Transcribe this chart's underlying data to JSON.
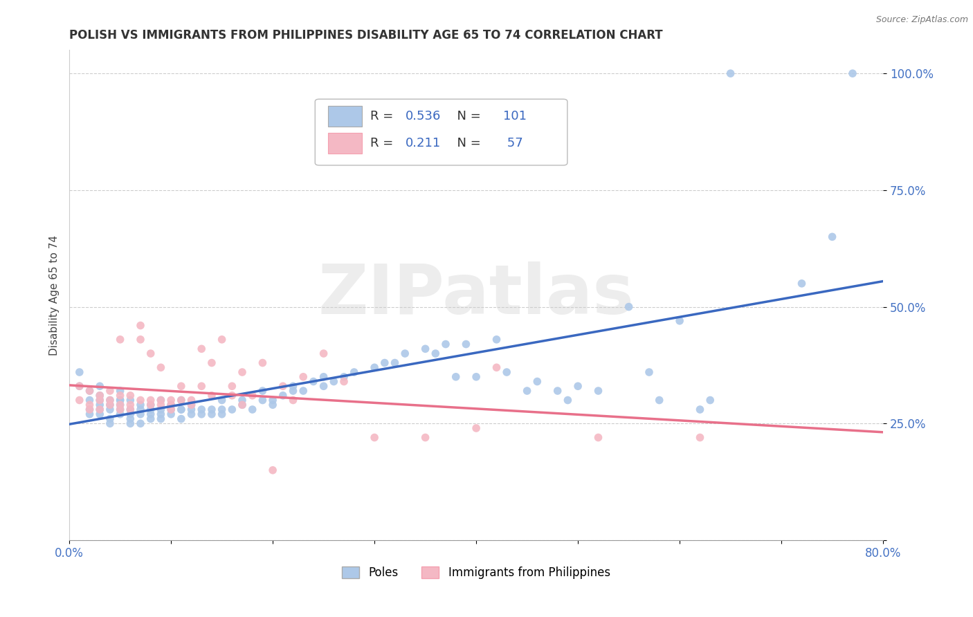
{
  "title": "POLISH VS IMMIGRANTS FROM PHILIPPINES DISABILITY AGE 65 TO 74 CORRELATION CHART",
  "source": "Source: ZipAtlas.com",
  "ylabel": "Disability Age 65 to 74",
  "xmin": 0.0,
  "xmax": 0.8,
  "ymin": 0.0,
  "ymax": 1.05,
  "xtick_positions": [
    0.0,
    0.1,
    0.2,
    0.3,
    0.4,
    0.5,
    0.6,
    0.7,
    0.8
  ],
  "xtick_labels": [
    "0.0%",
    "",
    "",
    "",
    "",
    "",
    "",
    "",
    "80.0%"
  ],
  "ytick_positions": [
    0.0,
    0.25,
    0.5,
    0.75,
    1.0
  ],
  "ytick_labels": [
    "",
    "25.0%",
    "50.0%",
    "75.0%",
    "100.0%"
  ],
  "blue_color": "#adc8e8",
  "pink_color": "#f4b8c4",
  "blue_line_color": "#3a68c0",
  "pink_line_color": "#e8708a",
  "legend_r_color": "#3a68c0",
  "legend_label_blue": "Poles",
  "legend_label_pink": "Immigrants from Philippines",
  "watermark": "ZIPatlas",
  "blue_scatter": [
    [
      0.01,
      0.33
    ],
    [
      0.01,
      0.36
    ],
    [
      0.02,
      0.3
    ],
    [
      0.02,
      0.28
    ],
    [
      0.02,
      0.27
    ],
    [
      0.02,
      0.32
    ],
    [
      0.03,
      0.29
    ],
    [
      0.03,
      0.3
    ],
    [
      0.03,
      0.28
    ],
    [
      0.03,
      0.31
    ],
    [
      0.03,
      0.33
    ],
    [
      0.03,
      0.27
    ],
    [
      0.04,
      0.26
    ],
    [
      0.04,
      0.28
    ],
    [
      0.04,
      0.3
    ],
    [
      0.04,
      0.29
    ],
    [
      0.04,
      0.25
    ],
    [
      0.05,
      0.28
    ],
    [
      0.05,
      0.27
    ],
    [
      0.05,
      0.3
    ],
    [
      0.05,
      0.29
    ],
    [
      0.05,
      0.3
    ],
    [
      0.05,
      0.32
    ],
    [
      0.06,
      0.26
    ],
    [
      0.06,
      0.27
    ],
    [
      0.06,
      0.28
    ],
    [
      0.06,
      0.25
    ],
    [
      0.06,
      0.3
    ],
    [
      0.07,
      0.27
    ],
    [
      0.07,
      0.29
    ],
    [
      0.07,
      0.28
    ],
    [
      0.07,
      0.25
    ],
    [
      0.08,
      0.26
    ],
    [
      0.08,
      0.27
    ],
    [
      0.08,
      0.29
    ],
    [
      0.08,
      0.28
    ],
    [
      0.09,
      0.26
    ],
    [
      0.09,
      0.28
    ],
    [
      0.09,
      0.3
    ],
    [
      0.09,
      0.27
    ],
    [
      0.1,
      0.27
    ],
    [
      0.1,
      0.29
    ],
    [
      0.1,
      0.28
    ],
    [
      0.11,
      0.26
    ],
    [
      0.11,
      0.28
    ],
    [
      0.11,
      0.3
    ],
    [
      0.11,
      0.28
    ],
    [
      0.12,
      0.27
    ],
    [
      0.12,
      0.29
    ],
    [
      0.12,
      0.28
    ],
    [
      0.13,
      0.28
    ],
    [
      0.13,
      0.27
    ],
    [
      0.14,
      0.28
    ],
    [
      0.14,
      0.27
    ],
    [
      0.15,
      0.28
    ],
    [
      0.15,
      0.27
    ],
    [
      0.15,
      0.3
    ],
    [
      0.16,
      0.28
    ],
    [
      0.17,
      0.29
    ],
    [
      0.17,
      0.3
    ],
    [
      0.18,
      0.28
    ],
    [
      0.19,
      0.3
    ],
    [
      0.19,
      0.32
    ],
    [
      0.2,
      0.29
    ],
    [
      0.2,
      0.3
    ],
    [
      0.21,
      0.31
    ],
    [
      0.22,
      0.32
    ],
    [
      0.22,
      0.33
    ],
    [
      0.23,
      0.32
    ],
    [
      0.24,
      0.34
    ],
    [
      0.25,
      0.33
    ],
    [
      0.25,
      0.35
    ],
    [
      0.26,
      0.34
    ],
    [
      0.27,
      0.35
    ],
    [
      0.28,
      0.36
    ],
    [
      0.3,
      0.37
    ],
    [
      0.31,
      0.38
    ],
    [
      0.32,
      0.38
    ],
    [
      0.33,
      0.4
    ],
    [
      0.35,
      0.41
    ],
    [
      0.36,
      0.4
    ],
    [
      0.37,
      0.42
    ],
    [
      0.38,
      0.35
    ],
    [
      0.39,
      0.42
    ],
    [
      0.4,
      0.35
    ],
    [
      0.42,
      0.43
    ],
    [
      0.43,
      0.36
    ],
    [
      0.45,
      0.32
    ],
    [
      0.46,
      0.34
    ],
    [
      0.48,
      0.32
    ],
    [
      0.49,
      0.3
    ],
    [
      0.5,
      0.33
    ],
    [
      0.52,
      0.32
    ],
    [
      0.55,
      0.5
    ],
    [
      0.57,
      0.36
    ],
    [
      0.58,
      0.3
    ],
    [
      0.6,
      0.47
    ],
    [
      0.62,
      0.28
    ],
    [
      0.63,
      0.3
    ],
    [
      0.65,
      1.0
    ],
    [
      0.72,
      0.55
    ],
    [
      0.75,
      0.65
    ],
    [
      0.77,
      1.0
    ]
  ],
  "pink_scatter": [
    [
      0.01,
      0.3
    ],
    [
      0.01,
      0.33
    ],
    [
      0.02,
      0.32
    ],
    [
      0.02,
      0.29
    ],
    [
      0.02,
      0.28
    ],
    [
      0.03,
      0.31
    ],
    [
      0.03,
      0.3
    ],
    [
      0.03,
      0.28
    ],
    [
      0.04,
      0.3
    ],
    [
      0.04,
      0.29
    ],
    [
      0.04,
      0.32
    ],
    [
      0.05,
      0.29
    ],
    [
      0.05,
      0.28
    ],
    [
      0.05,
      0.31
    ],
    [
      0.05,
      0.43
    ],
    [
      0.06,
      0.29
    ],
    [
      0.06,
      0.31
    ],
    [
      0.06,
      0.28
    ],
    [
      0.07,
      0.3
    ],
    [
      0.07,
      0.43
    ],
    [
      0.07,
      0.46
    ],
    [
      0.08,
      0.29
    ],
    [
      0.08,
      0.3
    ],
    [
      0.08,
      0.4
    ],
    [
      0.09,
      0.3
    ],
    [
      0.09,
      0.29
    ],
    [
      0.09,
      0.37
    ],
    [
      0.1,
      0.3
    ],
    [
      0.1,
      0.28
    ],
    [
      0.1,
      0.29
    ],
    [
      0.11,
      0.3
    ],
    [
      0.11,
      0.33
    ],
    [
      0.12,
      0.29
    ],
    [
      0.12,
      0.3
    ],
    [
      0.13,
      0.41
    ],
    [
      0.13,
      0.33
    ],
    [
      0.14,
      0.38
    ],
    [
      0.14,
      0.31
    ],
    [
      0.15,
      0.43
    ],
    [
      0.16,
      0.33
    ],
    [
      0.16,
      0.31
    ],
    [
      0.17,
      0.36
    ],
    [
      0.17,
      0.29
    ],
    [
      0.18,
      0.31
    ],
    [
      0.19,
      0.38
    ],
    [
      0.2,
      0.15
    ],
    [
      0.21,
      0.33
    ],
    [
      0.22,
      0.3
    ],
    [
      0.23,
      0.35
    ],
    [
      0.25,
      0.4
    ],
    [
      0.27,
      0.34
    ],
    [
      0.3,
      0.22
    ],
    [
      0.35,
      0.22
    ],
    [
      0.4,
      0.24
    ],
    [
      0.42,
      0.37
    ],
    [
      0.52,
      0.22
    ],
    [
      0.62,
      0.22
    ]
  ]
}
